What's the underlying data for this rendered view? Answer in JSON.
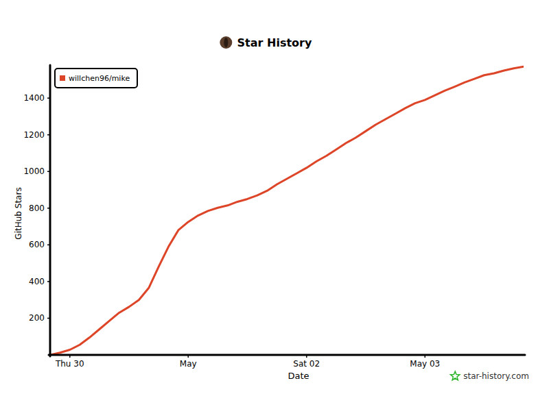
{
  "chart_data": {
    "type": "line",
    "title": "Star History",
    "x_label": "Date",
    "y_label": "GitHub Stars",
    "annotation": "star-history.com",
    "categories": [
      null,
      null,
      "Thu 30",
      null,
      null,
      null,
      null,
      null,
      null,
      null,
      null,
      null,
      null,
      null,
      "May",
      null,
      null,
      null,
      null,
      null,
      null,
      null,
      null,
      null,
      null,
      null,
      "Sat 02",
      null,
      null,
      null,
      null,
      null,
      null,
      null,
      null,
      null,
      null,
      null,
      "May 03",
      null,
      null,
      null,
      null,
      null,
      null,
      null,
      null,
      null,
      null
    ],
    "series": [
      {
        "name": "willchen96/mike",
        "color": "#dd4528",
        "values": [
          0,
          12,
          28,
          55,
          95,
          140,
          185,
          230,
          262,
          300,
          365,
          480,
          590,
          680,
          725,
          760,
          785,
          802,
          815,
          835,
          850,
          870,
          895,
          930,
          960,
          990,
          1020,
          1055,
          1085,
          1120,
          1155,
          1185,
          1220,
          1255,
          1285,
          1315,
          1345,
          1372,
          1390,
          1415,
          1440,
          1462,
          1485,
          1505,
          1525,
          1535,
          1550,
          1562,
          1572
        ]
      }
    ],
    "ylim": [
      0,
      1580
    ],
    "yticks": [
      200,
      400,
      600,
      800,
      1000,
      1200,
      1400
    ],
    "grid": false,
    "legend": "top-left"
  }
}
